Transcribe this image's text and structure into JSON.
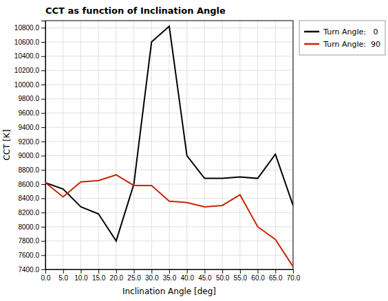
{
  "chart_data": {
    "type": "line",
    "title": "CCT as function of Inclination Angle",
    "xlabel": "Inclination Angle [deg]",
    "ylabel": "CCT [K]",
    "x": [
      0,
      5,
      10,
      15,
      20,
      25,
      30,
      35,
      40,
      45,
      50,
      55,
      60,
      65,
      70
    ],
    "series": [
      {
        "name": "Turn Angle:   0",
        "color": "#000000",
        "values": [
          8620,
          8530,
          8280,
          8180,
          7800,
          8600,
          10600,
          10820,
          9000,
          8680,
          8680,
          8700,
          8680,
          9020,
          8300
        ]
      },
      {
        "name": "Turn Angle:  90",
        "color": "#cc2200",
        "values": [
          8620,
          8420,
          8630,
          8650,
          8730,
          8580,
          8580,
          8360,
          8340,
          8280,
          8300,
          8450,
          8000,
          7820,
          7440
        ]
      }
    ],
    "xlim": [
      0,
      70
    ],
    "ylim": [
      7400,
      10900
    ],
    "xticks": [
      {
        "value": 0,
        "label": "0.0"
      },
      {
        "value": 5,
        "label": "5.0"
      },
      {
        "value": 10,
        "label": "10.0"
      },
      {
        "value": 15,
        "label": "15.0"
      },
      {
        "value": 20,
        "label": "20.0"
      },
      {
        "value": 25,
        "label": "25.0"
      },
      {
        "value": 30,
        "label": "30.0"
      },
      {
        "value": 35,
        "label": "35.0"
      },
      {
        "value": 40,
        "label": "40.0"
      },
      {
        "value": 45,
        "label": "45.0"
      },
      {
        "value": 50,
        "label": "50.0"
      },
      {
        "value": 55,
        "label": "55.0"
      },
      {
        "value": 60,
        "label": "60.0"
      },
      {
        "value": 65,
        "label": "65.0"
      },
      {
        "value": 70,
        "label": "70.0"
      }
    ],
    "yticks": [
      {
        "value": 7400,
        "label": "7400.0"
      },
      {
        "value": 7600,
        "label": "7600.0"
      },
      {
        "value": 7800,
        "label": "7800.0"
      },
      {
        "value": 8000,
        "label": "8000.0"
      },
      {
        "value": 8200,
        "label": "8200.0"
      },
      {
        "value": 8400,
        "label": "8400.0"
      },
      {
        "value": 8600,
        "label": "8600.0"
      },
      {
        "value": 8800,
        "label": "8800.0"
      },
      {
        "value": 9000,
        "label": "9000.0"
      },
      {
        "value": 9200,
        "label": "9200.0"
      },
      {
        "value": 9400,
        "label": "9400.0"
      },
      {
        "value": 9600,
        "label": "9600.0"
      },
      {
        "value": 9800,
        "label": "9800.0"
      },
      {
        "value": 10000,
        "label": "10000.0"
      },
      {
        "value": 10200,
        "label": "10200.0"
      },
      {
        "value": 10400,
        "label": "10400.0"
      },
      {
        "value": 10600,
        "label": "10600.0"
      },
      {
        "value": 10800,
        "label": "10800.0"
      }
    ],
    "grid": true,
    "legend": "upper right"
  }
}
